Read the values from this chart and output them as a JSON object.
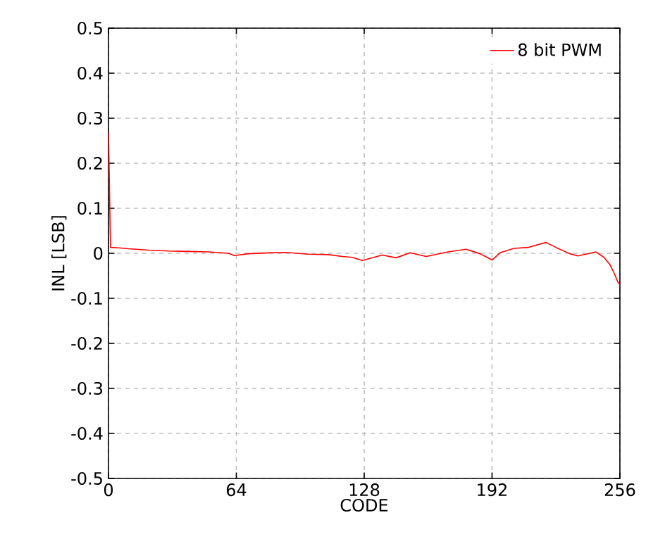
{
  "chart_data": {
    "type": "line",
    "xlabel": "CODE",
    "ylabel": "INL [LSB]",
    "xlim": [
      0,
      256
    ],
    "ylim": [
      -0.5,
      0.5
    ],
    "xticks": [
      0,
      64,
      128,
      192,
      256
    ],
    "yticks": [
      {
        "value": -0.5,
        "label": "-0.5"
      },
      {
        "value": -0.4,
        "label": "-0.4"
      },
      {
        "value": -0.3,
        "label": "-0.3"
      },
      {
        "value": -0.2,
        "label": "-0.2"
      },
      {
        "value": -0.1,
        "label": "-0.1"
      },
      {
        "value": 0,
        "label": "0"
      },
      {
        "value": 0.1,
        "label": "0.1"
      },
      {
        "value": 0.2,
        "label": "0.2"
      },
      {
        "value": 0.3,
        "label": "0.3"
      },
      {
        "value": 0.4,
        "label": "0.4"
      },
      {
        "value": 0.5,
        "label": "0.5"
      }
    ],
    "grid": true,
    "legend": "top right",
    "line_style": "solid",
    "marker": "none",
    "series": [
      {
        "name": "8 bit PWM",
        "color": "#ff0000",
        "x": [
          0,
          1,
          5,
          10,
          20,
          30,
          40,
          50,
          60,
          63,
          70,
          80,
          89,
          100,
          110,
          117,
          122,
          127,
          128,
          137,
          144,
          151,
          159,
          170,
          179,
          186,
          192,
          196,
          203,
          210,
          219,
          224,
          231,
          235,
          244,
          248,
          251,
          253,
          255,
          256
        ],
        "values": [
          0.27,
          0.013,
          0.012,
          0.01,
          0.007,
          0.005,
          0.004,
          0.003,
          0.0,
          -0.005,
          -0.001,
          0.001,
          0.002,
          -0.002,
          -0.003,
          -0.007,
          -0.009,
          -0.016,
          -0.015,
          -0.004,
          -0.01,
          0.001,
          -0.007,
          0.003,
          0.009,
          -0.001,
          -0.015,
          0.001,
          0.011,
          0.013,
          0.024,
          0.013,
          -0.001,
          -0.006,
          0.003,
          -0.009,
          -0.025,
          -0.043,
          -0.064,
          -0.07
        ]
      }
    ]
  }
}
